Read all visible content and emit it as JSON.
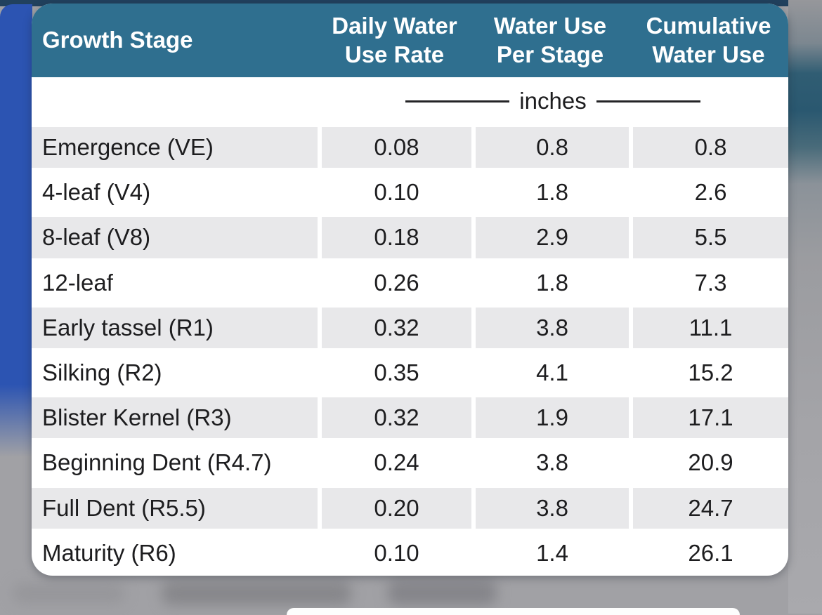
{
  "colors": {
    "header_bg": "#2F6F8F",
    "header_text": "#FFFFFF",
    "row_alt_bg": "#E8E8EA",
    "body_text": "#1D1D1F",
    "left_strip_blue": "#2C54B2",
    "top_bar_navy": "#21415E",
    "surround_gray": "#A1A1A5",
    "right_teal_blob": "#2A5870"
  },
  "table": {
    "header": {
      "growth_stage": "Growth Stage",
      "daily_water_line1": "Daily Water",
      "daily_water_line2": "Use Rate",
      "water_use_line1": "Water Use",
      "water_use_line2": "Per Stage",
      "cumulative_line1": "Cumulative",
      "cumulative_line2": "Water Use"
    },
    "units_label": "inches"
  },
  "chart_data": {
    "type": "table",
    "columns": [
      "Growth Stage",
      "Daily Water Use Rate",
      "Water Use Per Stage",
      "Cumulative Water Use"
    ],
    "units": "inches",
    "rows": [
      {
        "stage": "Emergence (VE)",
        "daily": "0.08",
        "per_stage": "0.8",
        "cumulative": "0.8"
      },
      {
        "stage": "4-leaf (V4)",
        "daily": "0.10",
        "per_stage": "1.8",
        "cumulative": "2.6"
      },
      {
        "stage": "8-leaf (V8)",
        "daily": "0.18",
        "per_stage": "2.9",
        "cumulative": "5.5"
      },
      {
        "stage": "12-leaf",
        "daily": "0.26",
        "per_stage": "1.8",
        "cumulative": "7.3"
      },
      {
        "stage": "Early tassel (R1)",
        "daily": "0.32",
        "per_stage": "3.8",
        "cumulative": "11.1"
      },
      {
        "stage": "Silking (R2)",
        "daily": "0.35",
        "per_stage": "4.1",
        "cumulative": "15.2"
      },
      {
        "stage": "Blister Kernel (R3)",
        "daily": "0.32",
        "per_stage": "1.9",
        "cumulative": "17.1"
      },
      {
        "stage": "Beginning Dent (R4.7)",
        "daily": "0.24",
        "per_stage": "3.8",
        "cumulative": "20.9"
      },
      {
        "stage": "Full Dent (R5.5)",
        "daily": "0.20",
        "per_stage": "3.8",
        "cumulative": "24.7"
      },
      {
        "stage": "Maturity (R6)",
        "daily": "0.10",
        "per_stage": "1.4",
        "cumulative": "26.1"
      }
    ]
  }
}
